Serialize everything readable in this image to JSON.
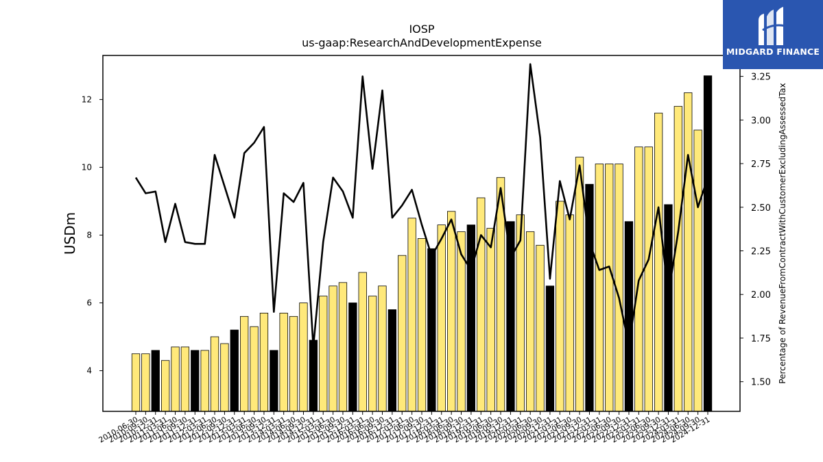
{
  "chart_data": {
    "type": "bar",
    "title": "IOSP",
    "subtitle": "us-gaap:ResearchAndDevelopmentExpense",
    "ylabel": "USDm",
    "y2label": "Percentage of RevenueFromContractWithCustomerExcludingAssessedTax",
    "ylim": [
      2.8,
      13.3
    ],
    "y2lim": [
      1.33,
      3.37
    ],
    "yticks": [
      "4",
      "6",
      "8",
      "10",
      "12"
    ],
    "y2ticks": [
      "1.50",
      "1.75",
      "2.00",
      "2.25",
      "2.50",
      "2.75",
      "3.00",
      "3.25"
    ],
    "categories": [
      "2010-06-30",
      "2010-09-30",
      "2010-12-31",
      "2011-03-31",
      "2011-06-30",
      "2011-09-30",
      "2011-12-31",
      "2012-03-31",
      "2012-06-30",
      "2012-09-30",
      "2012-12-31",
      "2013-03-31",
      "2013-06-30",
      "2013-09-30",
      "2013-12-31",
      "2014-03-31",
      "2014-06-30",
      "2014-09-30",
      "2014-12-31",
      "2015-03-31",
      "2015-06-30",
      "2015-09-30",
      "2015-12-31",
      "2016-03-31",
      "2016-06-30",
      "2016-09-30",
      "2016-12-31",
      "2017-03-31",
      "2017-06-30",
      "2017-09-30",
      "2017-12-31",
      "2018-03-31",
      "2018-06-30",
      "2018-09-30",
      "2018-12-31",
      "2019-03-31",
      "2019-06-30",
      "2019-09-30",
      "2019-12-31",
      "2020-03-31",
      "2020-06-30",
      "2020-09-30",
      "2020-12-31",
      "2021-03-31",
      "2021-06-30",
      "2021-09-30",
      "2021-12-31",
      "2022-03-31",
      "2022-06-30",
      "2022-09-30",
      "2022-12-31",
      "2023-03-31",
      "2023-06-30",
      "2023-09-30",
      "2023-12-31",
      "2024-03-31",
      "2024-06-30",
      "2024-09-30",
      "2024-12-31"
    ],
    "series": [
      {
        "type": "bar",
        "values": [
          4.5,
          4.5,
          4.6,
          4.3,
          4.7,
          4.7,
          4.6,
          4.6,
          5.0,
          4.8,
          5.2,
          5.6,
          5.3,
          5.7,
          4.6,
          5.7,
          5.6,
          6.0,
          4.9,
          6.2,
          6.5,
          6.6,
          6.0,
          6.9,
          6.2,
          6.5,
          5.8,
          7.4,
          8.5,
          7.9,
          7.6,
          8.3,
          8.7,
          8.1,
          8.3,
          9.1,
          8.2,
          9.7,
          8.4,
          8.6,
          8.1,
          7.7,
          6.5,
          9.0,
          8.6,
          10.3,
          9.5,
          10.1,
          10.1,
          10.1,
          8.4,
          10.6,
          10.6,
          11.6,
          8.9,
          11.8,
          12.2,
          11.1,
          12.7
        ],
        "highlight": [
          false,
          false,
          true,
          false,
          false,
          false,
          true,
          false,
          false,
          false,
          true,
          false,
          false,
          false,
          true,
          false,
          false,
          false,
          true,
          false,
          false,
          false,
          true,
          false,
          false,
          false,
          true,
          false,
          false,
          false,
          true,
          false,
          false,
          false,
          true,
          false,
          false,
          false,
          true,
          false,
          false,
          false,
          true,
          false,
          false,
          false,
          true,
          false,
          false,
          false,
          true,
          false,
          false,
          false,
          true,
          false,
          false,
          false,
          true
        ],
        "color": "#ffe97a",
        "highlight_color": "#000000"
      },
      {
        "type": "line",
        "axis": "right",
        "color": "#000000",
        "values": [
          2.67,
          2.58,
          2.59,
          2.3,
          2.52,
          2.3,
          2.29,
          2.29,
          2.8,
          2.62,
          2.44,
          2.81,
          2.87,
          2.96,
          1.9,
          2.58,
          2.53,
          2.64,
          1.7,
          2.3,
          2.67,
          2.59,
          2.44,
          3.25,
          2.72,
          3.17,
          2.44,
          2.51,
          2.6,
          2.4,
          2.22,
          2.32,
          2.43,
          2.23,
          2.14,
          2.34,
          2.27,
          2.61,
          2.21,
          2.31,
          3.32,
          2.9,
          2.09,
          2.65,
          2.43,
          2.74,
          2.3,
          2.14,
          2.16,
          1.98,
          1.71,
          2.08,
          2.2,
          2.5,
          2.0,
          2.36,
          2.8,
          2.5,
          2.67
        ]
      }
    ]
  },
  "logo": {
    "text": "MIDGARD FINANCE"
  }
}
